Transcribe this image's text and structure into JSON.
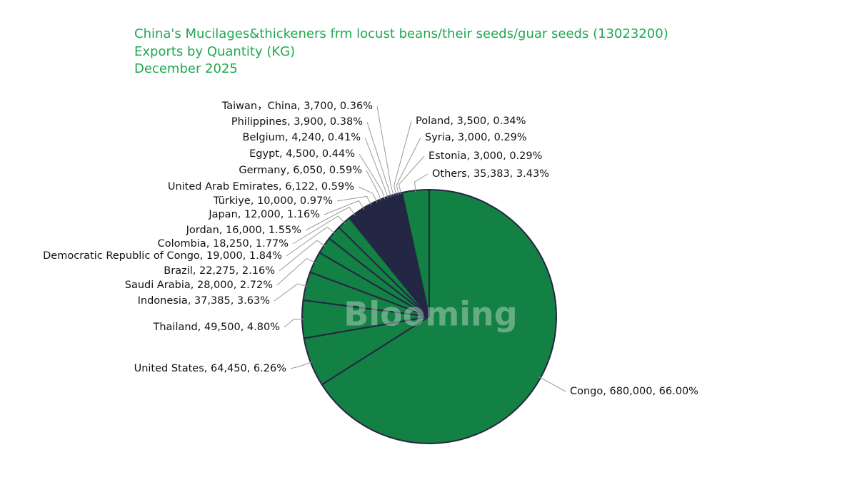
{
  "chart_data": {
    "type": "pie",
    "title_lines": [
      "China's Mucilages&thickeners frm locust beans/their seeds/guar seeds (13023200)",
      "Exports by Quantity (KG)",
      "December 2025"
    ],
    "watermark": "Blooming",
    "categories": [
      "Congo",
      "United States",
      "Thailand",
      "Indonesia",
      "Saudi Arabia",
      "Brazil",
      "Democratic Republic of Congo",
      "Colombia",
      "Jordan",
      "Japan",
      "Türkiye",
      "United Arab Emirates",
      "Germany",
      "Egypt",
      "Belgium",
      "Philippines",
      "Taiwan，China",
      "Poland",
      "Syria",
      "Estonia",
      "Others"
    ],
    "values": [
      680000,
      64450,
      49500,
      37385,
      28000,
      22275,
      19000,
      18250,
      16000,
      12000,
      10000,
      6122,
      6050,
      4500,
      4240,
      3900,
      3700,
      3500,
      3000,
      3000,
      35383
    ],
    "value_labels": [
      "Congo, 680,000, 66.00%",
      "United States, 64,450, 6.26%",
      "Thailand, 49,500, 4.80%",
      "Indonesia, 37,385, 3.63%",
      "Saudi Arabia, 28,000, 2.72%",
      "Brazil, 22,275, 2.16%",
      "Democratic Republic of Congo, 19,000, 1.84%",
      "Colombia, 18,250, 1.77%",
      "Jordan, 16,000, 1.55%",
      "Japan, 12,000, 1.16%",
      "Türkiye, 10,000, 0.97%",
      "United Arab Emirates, 6,122, 0.59%",
      "Germany, 6,050, 0.59%",
      "Egypt, 4,500, 0.44%",
      "Belgium, 4,240, 0.41%",
      "Philippines, 3,900, 0.38%",
      "Taiwan，China, 3,700, 0.36%",
      "Poland, 3,500, 0.34%",
      "Syria, 3,000, 0.29%",
      "Estonia, 3,000, 0.29%",
      "Others, 35,383, 3.43%"
    ],
    "colors": [
      "#138044",
      "#138044",
      "#138044",
      "#138044",
      "#138044",
      "#138044",
      "#138044",
      "#138044",
      "#232743",
      "#232743",
      "#232743",
      "#232743",
      "#232743",
      "#232743",
      "#232743",
      "#232743",
      "#232743",
      "#232743",
      "#232743",
      "#232743",
      "#138044"
    ]
  }
}
